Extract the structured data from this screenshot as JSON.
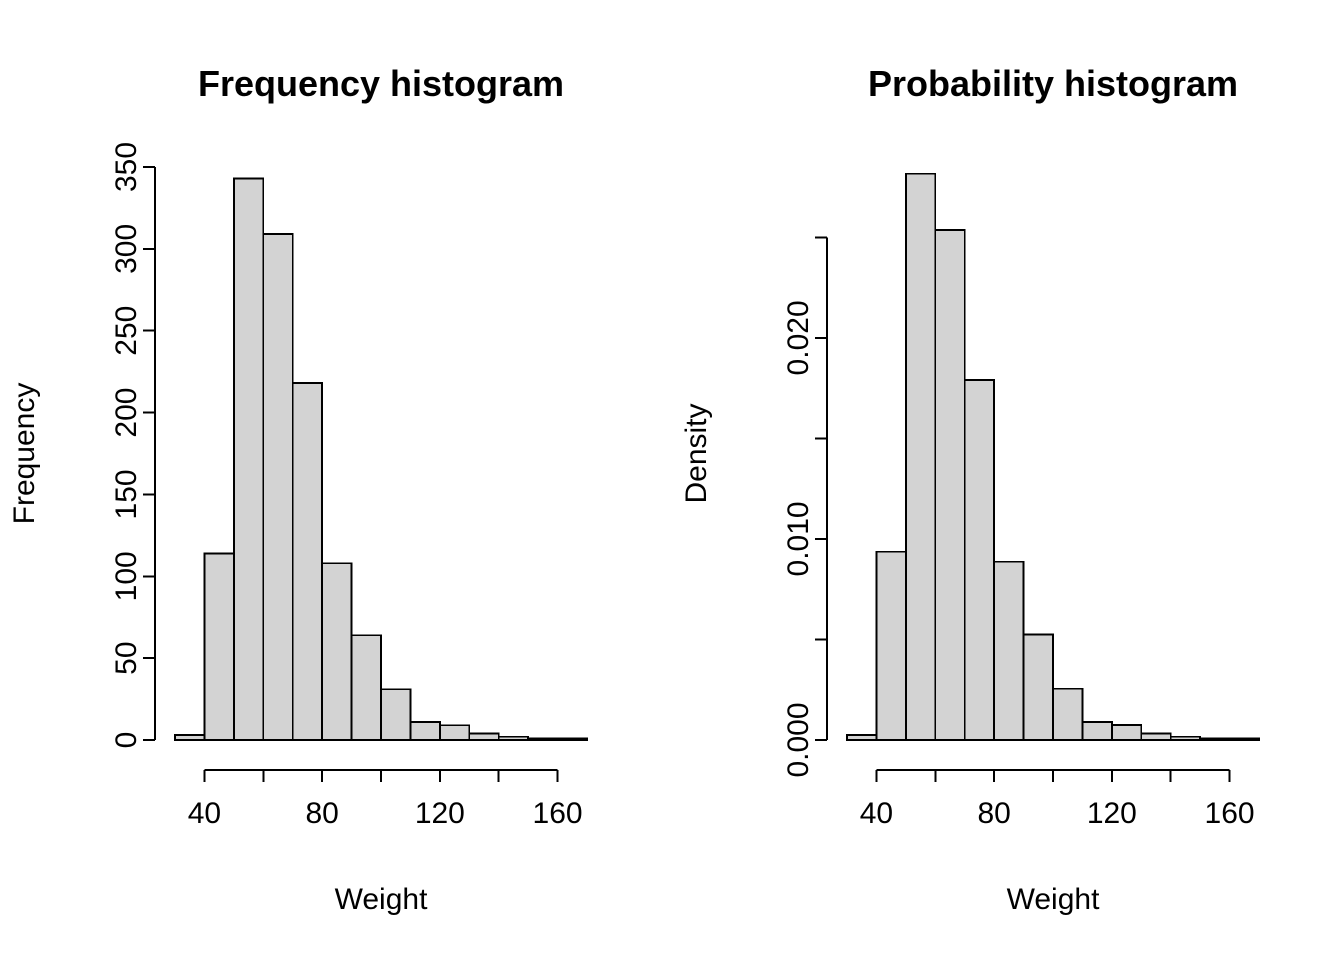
{
  "figure": {
    "background": "#ffffff",
    "bar_fill": "#d3d3d3",
    "bar_stroke": "#000000"
  },
  "chart_data": [
    {
      "type": "bar",
      "subtype": "histogram",
      "title": "Frequency histogram",
      "xlabel": "Weight",
      "ylabel": "Frequency",
      "bar_fill": "#d3d3d3",
      "bar_stroke": "#000000",
      "grid": false,
      "legend": null,
      "bins": {
        "start": 30,
        "width": 10,
        "edges": [
          30,
          40,
          50,
          60,
          70,
          80,
          90,
          100,
          110,
          120,
          130,
          140,
          150,
          160,
          170
        ]
      },
      "values": [
        3,
        114,
        343,
        309,
        218,
        108,
        64,
        31,
        11,
        9,
        4,
        2,
        1,
        1
      ],
      "xlim": [
        30,
        170
      ],
      "ylim": [
        0,
        350
      ],
      "xticks": [
        {
          "v": 40,
          "label": "40"
        },
        {
          "v": 60,
          "label": ""
        },
        {
          "v": 80,
          "label": "80"
        },
        {
          "v": 100,
          "label": ""
        },
        {
          "v": 120,
          "label": "120"
        },
        {
          "v": 140,
          "label": ""
        },
        {
          "v": 160,
          "label": "160"
        }
      ],
      "yticks": [
        {
          "v": 0,
          "label": "0"
        },
        {
          "v": 50,
          "label": "50"
        },
        {
          "v": 100,
          "label": "100"
        },
        {
          "v": 150,
          "label": "150"
        },
        {
          "v": 200,
          "label": "200"
        },
        {
          "v": 250,
          "label": "250"
        },
        {
          "v": 300,
          "label": "300"
        },
        {
          "v": 350,
          "label": "350"
        }
      ]
    },
    {
      "type": "bar",
      "subtype": "histogram",
      "title": "Probability histogram",
      "xlabel": "Weight",
      "ylabel": "Density",
      "bar_fill": "#d3d3d3",
      "bar_stroke": "#000000",
      "grid": false,
      "legend": null,
      "bins": {
        "start": 30,
        "width": 10,
        "edges": [
          30,
          40,
          50,
          60,
          70,
          80,
          90,
          100,
          110,
          120,
          130,
          140,
          150,
          160,
          170
        ]
      },
      "values": [
        0.00025,
        0.00936,
        0.02816,
        0.02537,
        0.0179,
        0.00887,
        0.00525,
        0.00255,
        0.0009,
        0.00074,
        0.00033,
        0.00016,
        8e-05,
        8e-05
      ],
      "xlim": [
        30,
        170
      ],
      "ylim": [
        0,
        0.0285
      ],
      "xticks": [
        {
          "v": 40,
          "label": "40"
        },
        {
          "v": 60,
          "label": ""
        },
        {
          "v": 80,
          "label": "80"
        },
        {
          "v": 100,
          "label": ""
        },
        {
          "v": 120,
          "label": "120"
        },
        {
          "v": 140,
          "label": ""
        },
        {
          "v": 160,
          "label": "160"
        }
      ],
      "yticks": [
        {
          "v": 0,
          "label": "0.000"
        },
        {
          "v": 0.005,
          "label": ""
        },
        {
          "v": 0.01,
          "label": "0.010"
        },
        {
          "v": 0.015,
          "label": ""
        },
        {
          "v": 0.02,
          "label": "0.020"
        },
        {
          "v": 0.025,
          "label": ""
        }
      ]
    }
  ]
}
